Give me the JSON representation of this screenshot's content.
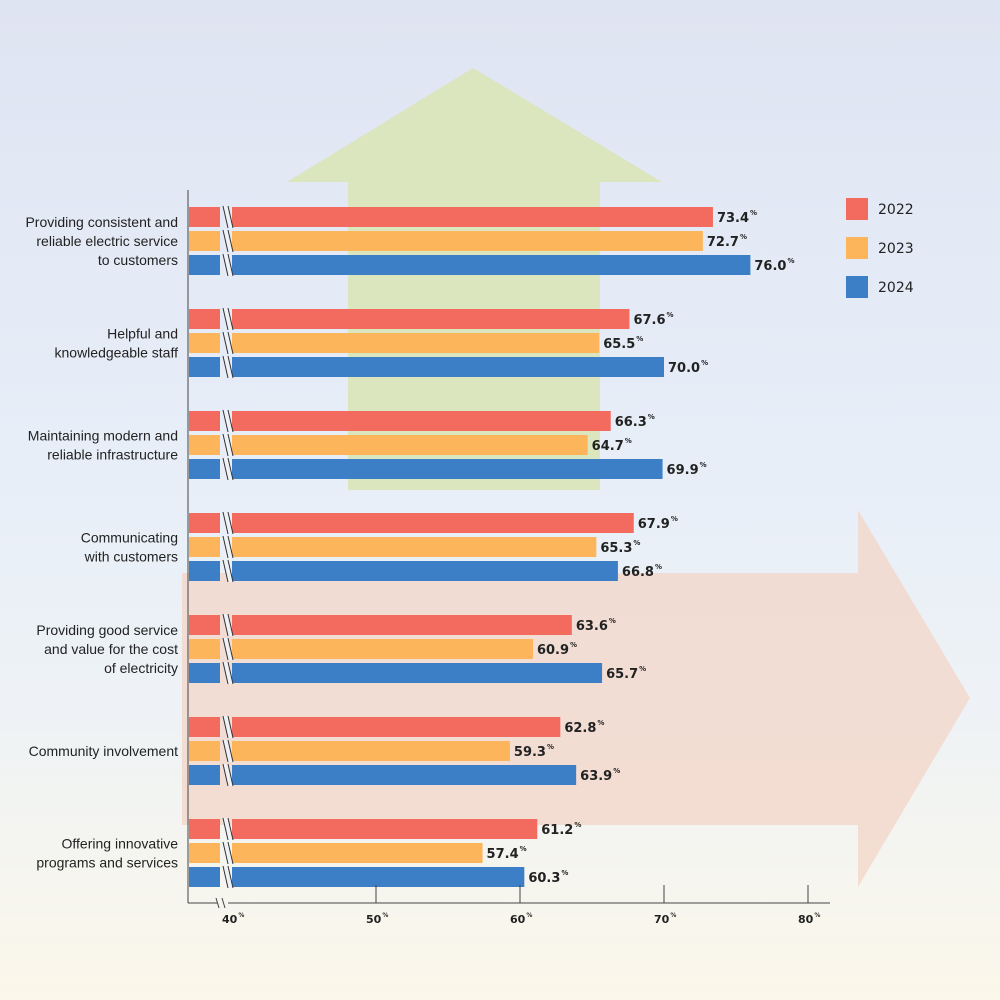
{
  "chart_data": {
    "type": "bar",
    "orientation": "horizontal",
    "categories": [
      [
        "Providing consistent and",
        "reliable electric service",
        "to customers"
      ],
      [
        "Helpful and",
        "knowledgeable staff"
      ],
      [
        "Maintaining modern and",
        "reliable infrastructure"
      ],
      [
        "Communicating",
        "with customers"
      ],
      [
        "Providing good service",
        "and value for the cost",
        "of electricity"
      ],
      [
        "Community involvement"
      ],
      [
        "Offering innovative",
        "programs and services"
      ]
    ],
    "series": [
      {
        "name": "2022",
        "color": "#f26b5e",
        "values": [
          73.4,
          67.6,
          66.3,
          67.9,
          63.6,
          62.8,
          61.2
        ]
      },
      {
        "name": "2023",
        "color": "#fcb55a",
        "values": [
          72.7,
          65.5,
          64.7,
          65.3,
          60.9,
          59.3,
          57.4
        ]
      },
      {
        "name": "2024",
        "color": "#3d7fc7",
        "values": [
          76.0,
          70.0,
          69.9,
          66.8,
          65.7,
          63.9,
          60.3
        ]
      }
    ],
    "xlim": [
      40,
      80
    ],
    "xticks": [
      "40",
      "50",
      "60",
      "70",
      "80"
    ],
    "tick_suffix": "%",
    "value_suffix": "%",
    "axis_break": true,
    "legend_position": "top-right",
    "grid": false,
    "decorations": {
      "up_arrow_color": "#d9e4b4",
      "right_arrow_color": "#f3d5c8"
    }
  }
}
